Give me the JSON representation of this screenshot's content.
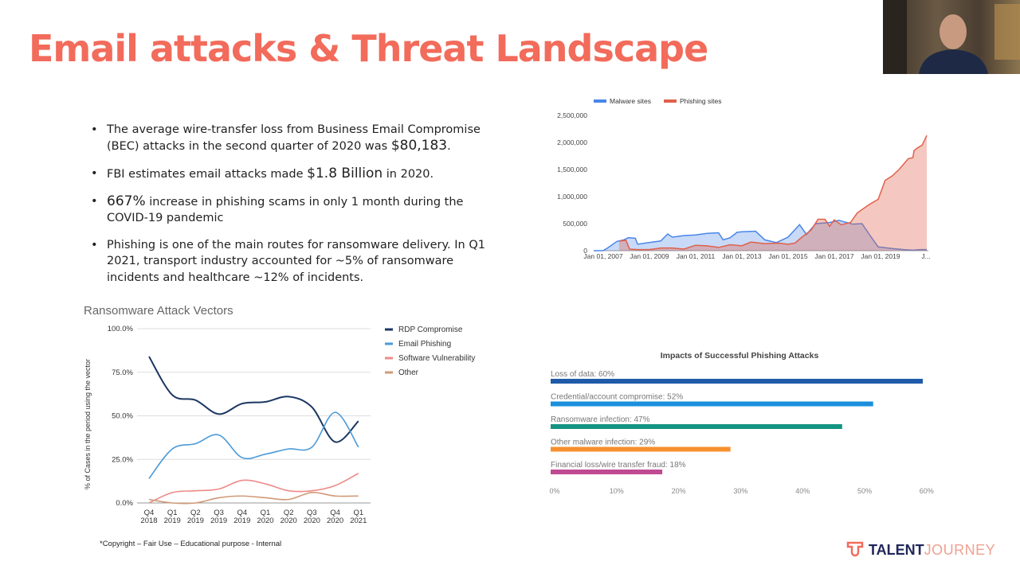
{
  "title": "Email attacks & Threat Landscape",
  "bullets": [
    {
      "pre": "The average wire-transfer loss from Business Email Compromise (BEC) attacks in the second quarter of 2020 was ",
      "big": "$80,183",
      "post": "."
    },
    {
      "pre": "FBI estimates email attacks made ",
      "big": "$1.8 Billion",
      "post": " in 2020."
    },
    {
      "pre": "",
      "big": "667%",
      "post": " increase in phishing scams in only 1 month during the COVID-19 pandemic"
    },
    {
      "pre": "Phishing is one of the main routes for ransomware delivery. In Q1 2021, transport industry accounted for ~5% of ransomware incidents and healthcare ~12% of incidents.",
      "big": "",
      "post": ""
    }
  ],
  "copyright": "*Copyright – Fair Use – Educational purpose - Internal",
  "logo": {
    "bold": "TALENT",
    "light": "JOURNEY"
  },
  "chart_data": [
    {
      "type": "area",
      "title": "",
      "legend": [
        "Malware sites",
        "Phishing sites"
      ],
      "legend_position": "top-left",
      "colors": [
        "#4a86e8",
        "#e0604a"
      ],
      "yticks": [
        "0",
        "500,000",
        "1,000,000",
        "1,500,000",
        "2,000,000",
        "2,500,000"
      ],
      "ylim": [
        0,
        2500000
      ],
      "xticks": [
        "Jan 01, 2007",
        "Jan 01, 2009",
        "Jan 01, 2011",
        "Jan 01, 2013",
        "Jan 01, 2015",
        "Jan 01, 2017",
        "Jan 01, 2019",
        "J..."
      ],
      "xlim": [
        2006.6,
        2021.0
      ],
      "series": [
        {
          "name": "Malware sites",
          "points": [
            [
              2006.6,
              0
            ],
            [
              2007.0,
              0
            ],
            [
              2007.2,
              50000
            ],
            [
              2007.6,
              170000
            ],
            [
              2007.9,
              200000
            ],
            [
              2008.1,
              240000
            ],
            [
              2008.4,
              230000
            ],
            [
              2008.5,
              120000
            ],
            [
              2009,
              150000
            ],
            [
              2009.5,
              180000
            ],
            [
              2009.8,
              310000
            ],
            [
              2010,
              250000
            ],
            [
              2010.5,
              280000
            ],
            [
              2011,
              290000
            ],
            [
              2011.5,
              320000
            ],
            [
              2012,
              330000
            ],
            [
              2012.2,
              200000
            ],
            [
              2012.5,
              240000
            ],
            [
              2012.8,
              340000
            ],
            [
              2013,
              350000
            ],
            [
              2013.6,
              360000
            ],
            [
              2014,
              200000
            ],
            [
              2014.5,
              150000
            ],
            [
              2015,
              250000
            ],
            [
              2015.5,
              480000
            ],
            [
              2015.8,
              300000
            ],
            [
              2016.2,
              500000
            ],
            [
              2016.8,
              520000
            ],
            [
              2017.2,
              560000
            ],
            [
              2017.8,
              490000
            ],
            [
              2018.2,
              500000
            ],
            [
              2018.6,
              250000
            ],
            [
              2018.9,
              70000
            ],
            [
              2019.5,
              40000
            ],
            [
              2020,
              20000
            ],
            [
              2020.4,
              10000
            ],
            [
              2020.7,
              20000
            ],
            [
              2021,
              20000
            ]
          ]
        },
        {
          "name": "Phishing sites",
          "points": [
            [
              2007.7,
              180000
            ],
            [
              2008,
              190000
            ],
            [
              2008.15,
              30000
            ],
            [
              2008.5,
              20000
            ],
            [
              2009,
              20000
            ],
            [
              2009.5,
              50000
            ],
            [
              2010,
              50000
            ],
            [
              2010.5,
              30000
            ],
            [
              2011,
              100000
            ],
            [
              2011.5,
              90000
            ],
            [
              2012,
              60000
            ],
            [
              2012.5,
              110000
            ],
            [
              2013,
              90000
            ],
            [
              2013.4,
              160000
            ],
            [
              2014,
              130000
            ],
            [
              2014.6,
              140000
            ],
            [
              2015,
              120000
            ],
            [
              2015.3,
              140000
            ],
            [
              2015.6,
              250000
            ],
            [
              2016,
              380000
            ],
            [
              2016.3,
              580000
            ],
            [
              2016.6,
              580000
            ],
            [
              2016.8,
              450000
            ],
            [
              2017,
              570000
            ],
            [
              2017.3,
              480000
            ],
            [
              2017.7,
              520000
            ],
            [
              2018,
              700000
            ],
            [
              2018.5,
              850000
            ],
            [
              2018.9,
              950000
            ],
            [
              2019.2,
              1300000
            ],
            [
              2019.5,
              1380000
            ],
            [
              2019.8,
              1500000
            ],
            [
              2020.2,
              1700000
            ],
            [
              2020.4,
              1720000
            ],
            [
              2020.45,
              1850000
            ],
            [
              2020.6,
              1900000
            ],
            [
              2020.8,
              1950000
            ],
            [
              2021,
              2130000
            ]
          ]
        }
      ]
    },
    {
      "type": "line",
      "title": "Ransomware Attack Vectors",
      "ylabel": "% of Cases in the period using the vector",
      "xlabel": "",
      "yticks": [
        "0.0%",
        "25.0%",
        "50.0%",
        "75.0%",
        "100.0%"
      ],
      "ylim": [
        0,
        100
      ],
      "legend_position": "right",
      "categories": [
        [
          "Q4",
          "2018"
        ],
        [
          "Q1",
          "2019"
        ],
        [
          "Q2",
          "2019"
        ],
        [
          "Q3",
          "2019"
        ],
        [
          "Q4",
          "2019"
        ],
        [
          "Q1",
          "2020"
        ],
        [
          "Q2",
          "2020"
        ],
        [
          "Q3",
          "2020"
        ],
        [
          "Q4",
          "2020"
        ],
        [
          "Q1",
          "2021"
        ]
      ],
      "series": [
        {
          "name": "RDP Compromise",
          "color": "#1c3763",
          "values": [
            84,
            62,
            59,
            51,
            57,
            58,
            61,
            55,
            35,
            47
          ]
        },
        {
          "name": "Email Phishing",
          "color": "#4a9ad8",
          "values": [
            14,
            31,
            34,
            39,
            26,
            28,
            31,
            32,
            52,
            32
          ]
        },
        {
          "name": "Software Vulnerability",
          "color": "#ee8a88",
          "values": [
            0,
            6,
            7,
            8,
            13,
            11,
            7,
            7,
            10,
            17
          ]
        },
        {
          "name": "Other",
          "color": "#d09a78",
          "values": [
            2,
            0,
            0,
            3,
            4,
            3,
            2,
            6,
            4,
            4
          ]
        }
      ]
    },
    {
      "type": "bar",
      "title": "Impacts of Successful Phishing Attacks",
      "xlim": [
        0,
        60
      ],
      "xticks": [
        "0%",
        "10%",
        "20%",
        "30%",
        "40%",
        "50%",
        "60%"
      ],
      "bars": [
        {
          "label": "Loss of data: 60%",
          "value": 60,
          "color": "#1f5ba8"
        },
        {
          "label": "Credential/account compromise: 52%",
          "value": 52,
          "color": "#1a8fdc"
        },
        {
          "label": "Ransomware infection: 47%",
          "value": 47,
          "color": "#149482"
        },
        {
          "label": "Other malware infection: 29%",
          "value": 29,
          "color": "#f6902f"
        },
        {
          "label": "Financial loss/wire transfer fraud: 18%",
          "value": 18,
          "color": "#c04a92"
        }
      ]
    }
  ]
}
